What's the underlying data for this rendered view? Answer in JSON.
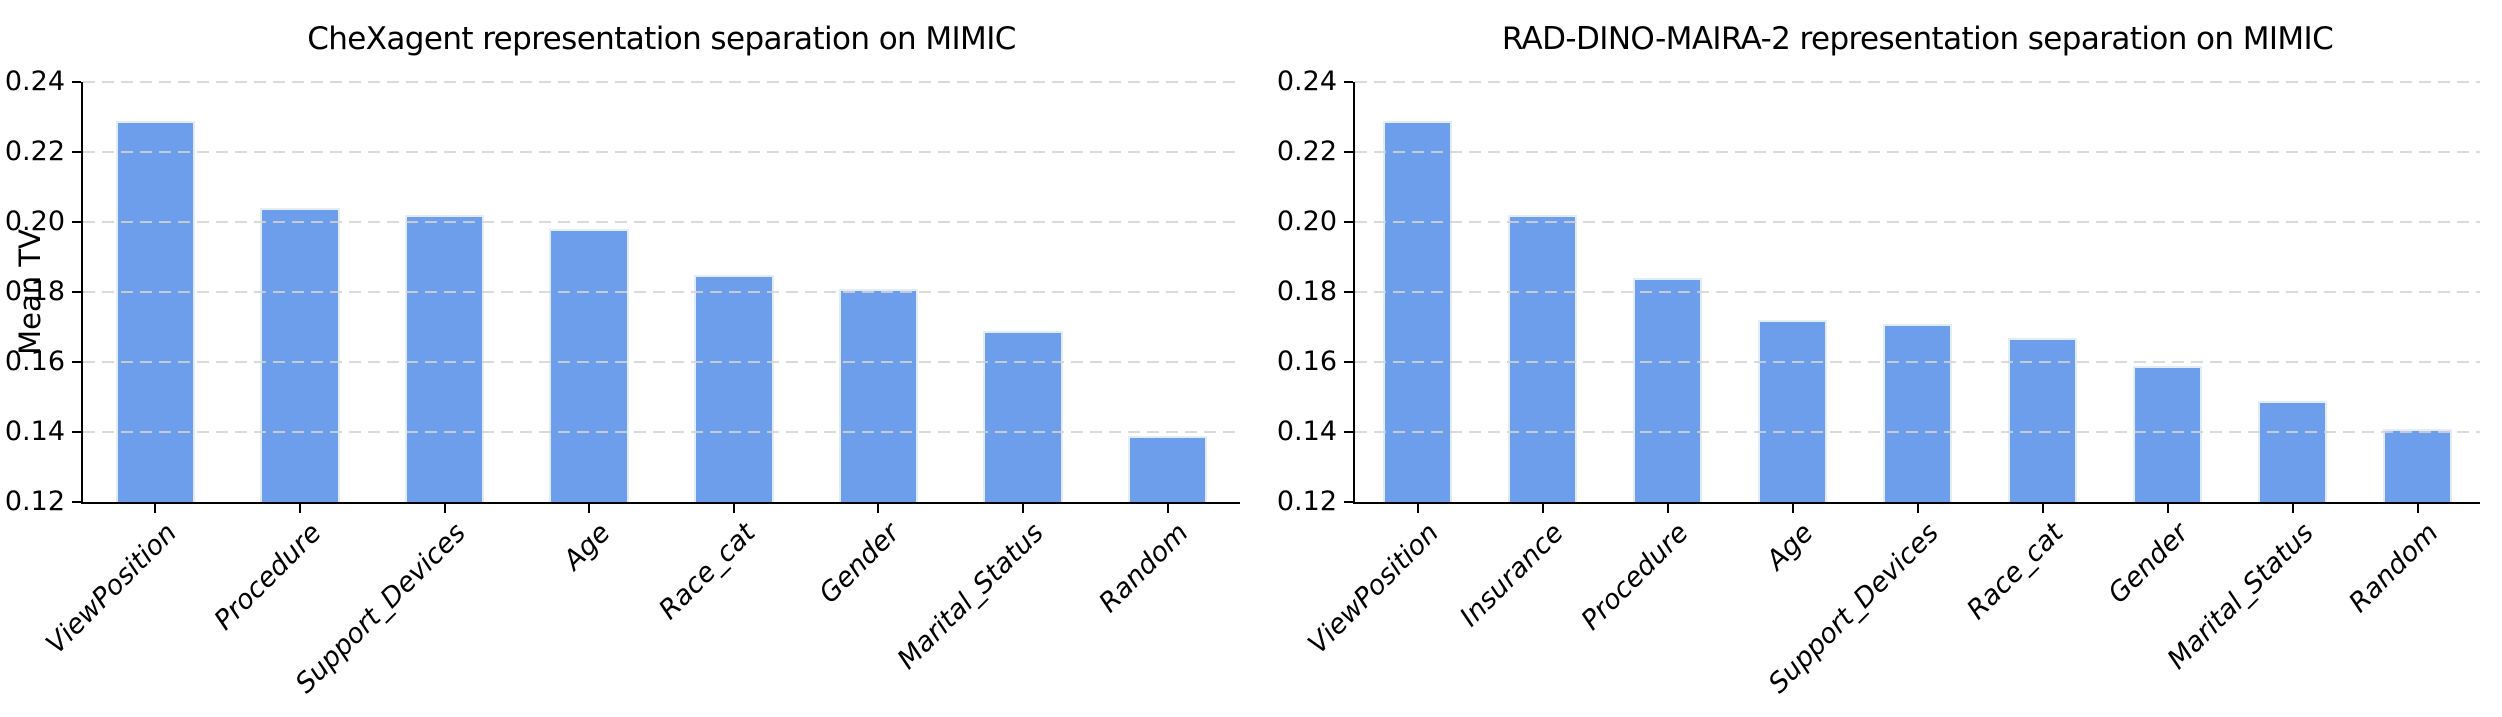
{
  "figure": {
    "background": "#ffffff",
    "n_charts": 2
  },
  "colors": {
    "bar_fill": "#6d9eeb",
    "bar_edge": "#e8eefb",
    "gridline": "#d3d3d3",
    "axis": "#000000",
    "text": "#000000"
  },
  "chart_data": [
    {
      "type": "bar",
      "title": "CheXagent representation separation on MIMIC",
      "xlabel": "",
      "ylabel": "Mean TV",
      "categories": [
        "ViewPosition",
        "Procedure",
        "Support_Devices",
        "Age",
        "Race_cat",
        "Gender",
        "Marital_Status",
        "Random"
      ],
      "values": [
        0.229,
        0.204,
        0.202,
        0.198,
        0.185,
        0.181,
        0.169,
        0.139
      ],
      "ylim": [
        0.12,
        0.24
      ],
      "yticks": [
        "0.12",
        "0.14",
        "0.16",
        "0.18",
        "0.20",
        "0.22",
        "0.24"
      ],
      "grid": "horizontal-dashed",
      "grid_above_bars": true,
      "legend": "none",
      "x_tick_label_rotation_deg": 45,
      "x_tick_label_style": "italic"
    },
    {
      "type": "bar",
      "title": "RAD-DINO-MAIRA-2 representation separation on MIMIC",
      "xlabel": "",
      "ylabel": "",
      "categories": [
        "ViewPosition",
        "Insurance",
        "Procedure",
        "Age",
        "Support_Devices",
        "Race_cat",
        "Gender",
        "Marital_Status",
        "Random"
      ],
      "values": [
        0.229,
        0.202,
        0.184,
        0.172,
        0.171,
        0.167,
        0.159,
        0.149,
        0.141
      ],
      "ylim": [
        0.12,
        0.24
      ],
      "yticks": [
        "0.12",
        "0.14",
        "0.16",
        "0.18",
        "0.20",
        "0.22",
        "0.24"
      ],
      "grid": "horizontal-dashed",
      "grid_above_bars": true,
      "legend": "none",
      "x_tick_label_rotation_deg": 45,
      "x_tick_label_style": "italic"
    }
  ]
}
